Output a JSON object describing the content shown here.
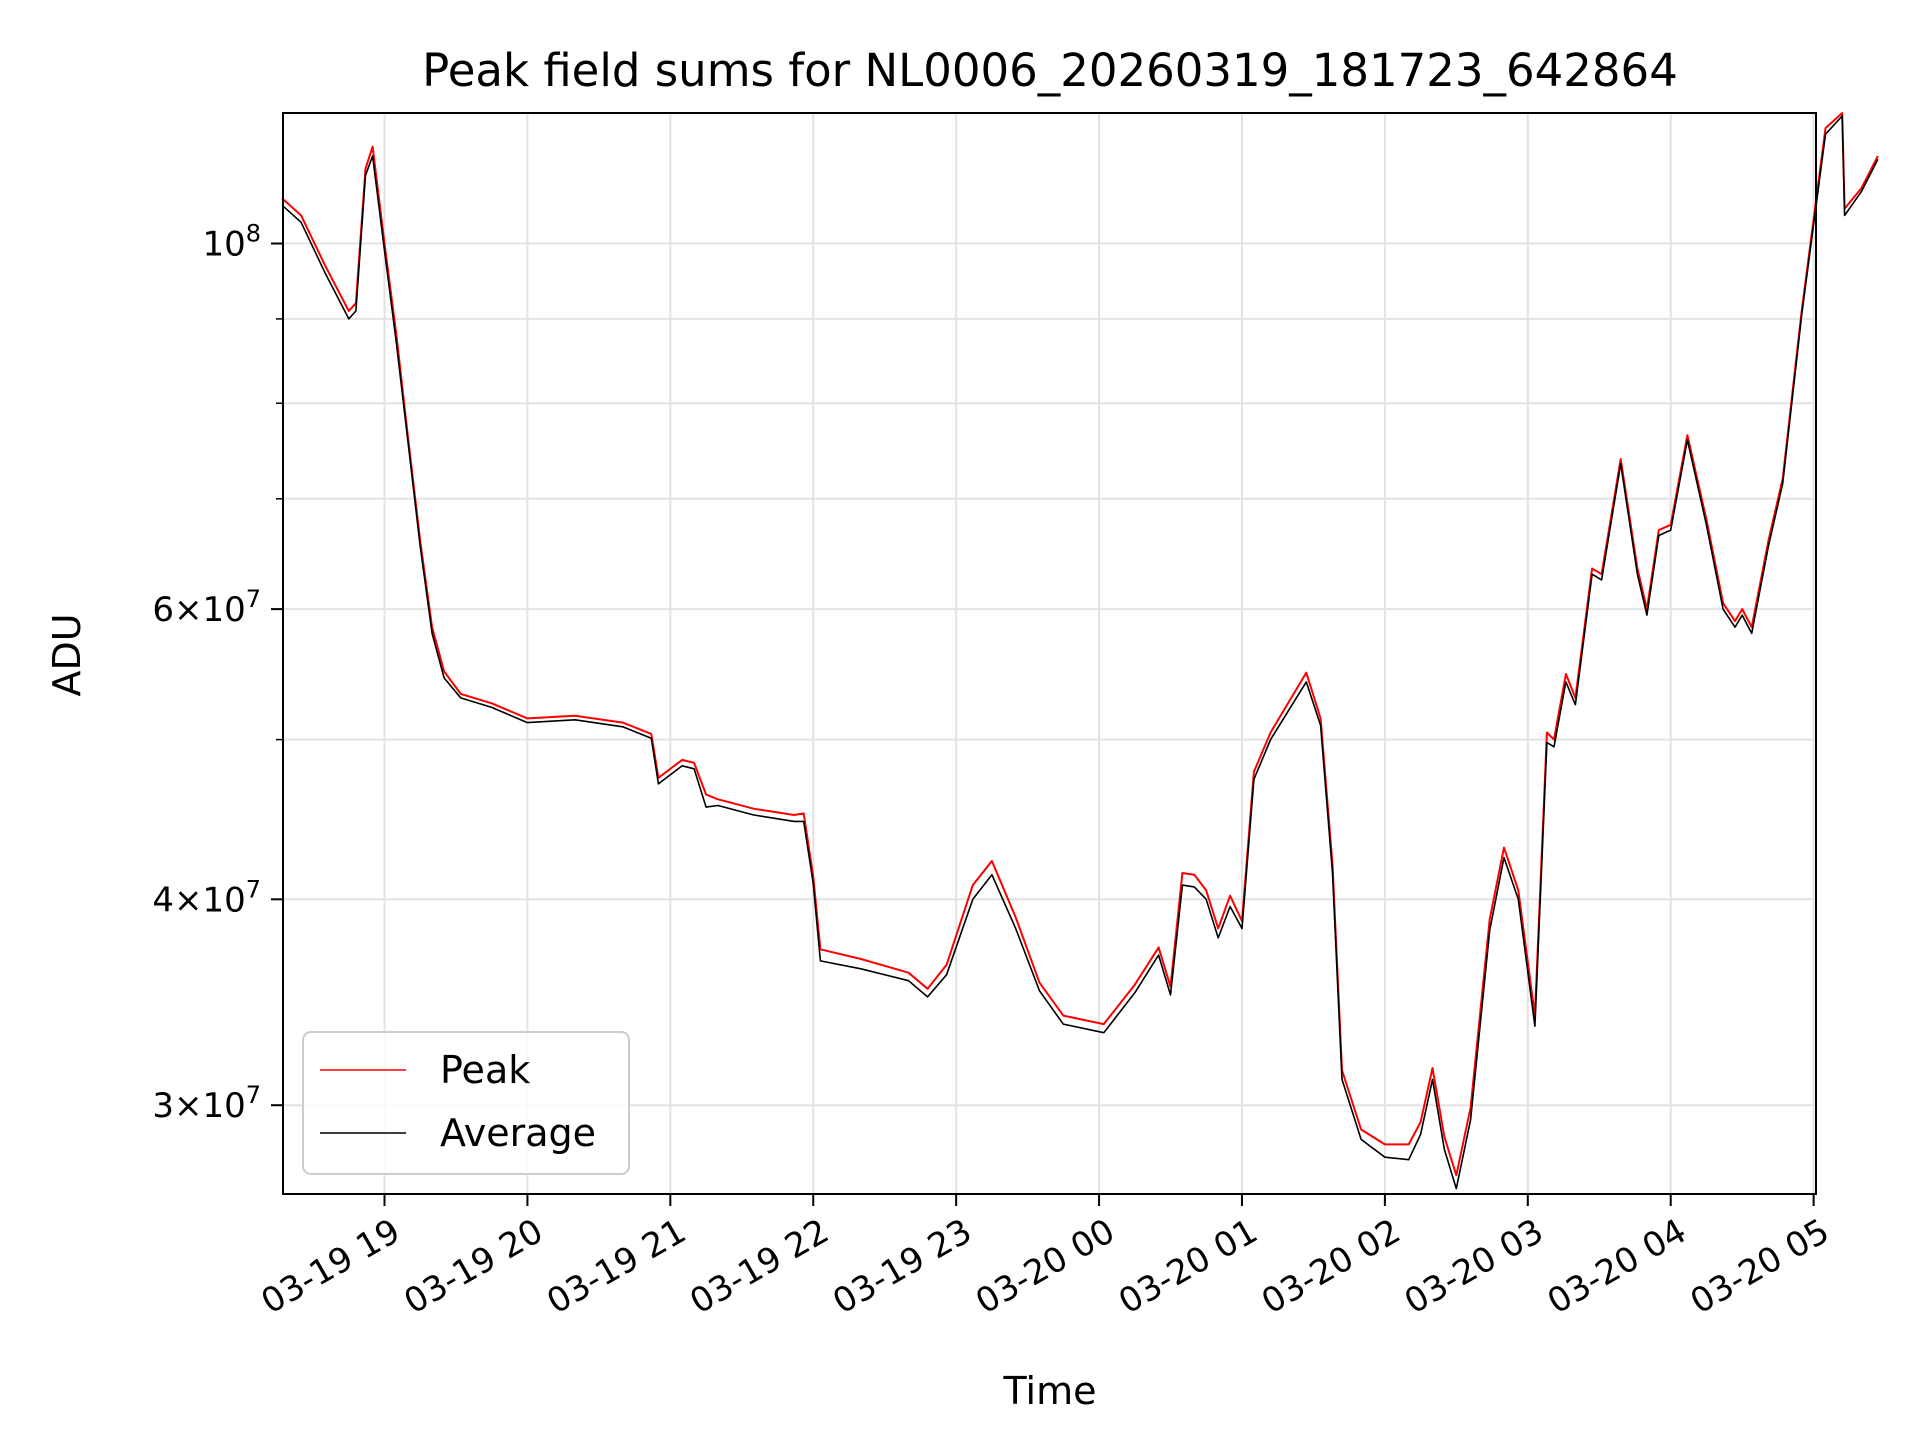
{
  "chart_data": {
    "type": "line",
    "title": "Peak field sums for NL0006_20260319_181723_642864",
    "xlabel": "Time",
    "ylabel": "ADU",
    "yscale": "log",
    "ylim": [
      26500000,
      120000000
    ],
    "xlim": [
      "2026-03-19 18:17:23",
      "2026-03-20 05:01:00"
    ],
    "grid": true,
    "legend_position": "lower-left",
    "x_ticks": [
      {
        "t": "2026-03-19 19:00",
        "label": "03-19 19"
      },
      {
        "t": "2026-03-19 20:00",
        "label": "03-19 20"
      },
      {
        "t": "2026-03-19 21:00",
        "label": "03-19 21"
      },
      {
        "t": "2026-03-19 22:00",
        "label": "03-19 22"
      },
      {
        "t": "2026-03-19 23:00",
        "label": "03-19 23"
      },
      {
        "t": "2026-03-20 00:00",
        "label": "03-20 00"
      },
      {
        "t": "2026-03-20 01:00",
        "label": "03-20 01"
      },
      {
        "t": "2026-03-20 02:00",
        "label": "03-20 02"
      },
      {
        "t": "2026-03-20 03:00",
        "label": "03-20 03"
      },
      {
        "t": "2026-03-20 04:00",
        "label": "03-20 04"
      },
      {
        "t": "2026-03-20 05:00",
        "label": "03-20 05"
      }
    ],
    "y_major_ticks": [
      {
        "v": 30000000,
        "mant": "3",
        "exp": "7"
      },
      {
        "v": 40000000,
        "mant": "4",
        "exp": "7"
      },
      {
        "v": 60000000,
        "mant": "6",
        "exp": "7"
      },
      {
        "v": 100000000,
        "mant": "",
        "exp": "8"
      }
    ],
    "y_minor_ticks": [
      50000000,
      70000000,
      80000000,
      90000000
    ],
    "series": [
      {
        "name": "Peak",
        "color": "#ff0000",
        "points": [
          [
            "2026-03-19 18:17",
            106500000
          ],
          [
            "2026-03-19 18:25",
            104000000
          ],
          [
            "2026-03-19 18:35",
            97000000
          ],
          [
            "2026-03-19 18:45",
            91000000
          ],
          [
            "2026-03-19 18:48",
            92000000
          ],
          [
            "2026-03-19 18:52",
            111000000
          ],
          [
            "2026-03-19 18:55",
            114500000
          ],
          [
            "2026-03-19 19:00",
            100000000
          ],
          [
            "2026-03-19 19:05",
            88000000
          ],
          [
            "2026-03-19 19:10",
            76000000
          ],
          [
            "2026-03-19 19:15",
            66000000
          ],
          [
            "2026-03-19 19:20",
            58500000
          ],
          [
            "2026-03-19 19:25",
            55000000
          ],
          [
            "2026-03-19 19:32",
            53300000
          ],
          [
            "2026-03-19 19:45",
            52600000
          ],
          [
            "2026-03-19 20:00",
            51500000
          ],
          [
            "2026-03-19 20:20",
            51700000
          ],
          [
            "2026-03-19 20:40",
            51200000
          ],
          [
            "2026-03-19 20:52",
            50400000
          ],
          [
            "2026-03-19 20:55",
            47400000
          ],
          [
            "2026-03-19 21:05",
            48600000
          ],
          [
            "2026-03-19 21:10",
            48400000
          ],
          [
            "2026-03-19 21:15",
            46300000
          ],
          [
            "2026-03-19 21:20",
            46000000
          ],
          [
            "2026-03-19 21:35",
            45400000
          ],
          [
            "2026-03-19 21:52",
            45000000
          ],
          [
            "2026-03-19 21:56",
            45100000
          ],
          [
            "2026-03-19 22:00",
            41300000
          ],
          [
            "2026-03-19 22:03",
            37300000
          ],
          [
            "2026-03-19 22:20",
            36800000
          ],
          [
            "2026-03-19 22:40",
            36100000
          ],
          [
            "2026-03-19 22:48",
            35300000
          ],
          [
            "2026-03-19 22:56",
            36500000
          ],
          [
            "2026-03-19 23:07",
            40800000
          ],
          [
            "2026-03-19 23:15",
            42200000
          ],
          [
            "2026-03-19 23:25",
            39000000
          ],
          [
            "2026-03-19 23:35",
            35600000
          ],
          [
            "2026-03-19 23:45",
            34000000
          ],
          [
            "2026-03-20 00:02",
            33600000
          ],
          [
            "2026-03-20 00:15",
            35500000
          ],
          [
            "2026-03-20 00:25",
            37400000
          ],
          [
            "2026-03-20 00:30",
            35400000
          ],
          [
            "2026-03-20 00:35",
            41500000
          ],
          [
            "2026-03-20 00:40",
            41400000
          ],
          [
            "2026-03-20 00:45",
            40500000
          ],
          [
            "2026-03-20 00:50",
            38400000
          ],
          [
            "2026-03-20 00:55",
            40200000
          ],
          [
            "2026-03-20 01:00",
            38800000
          ],
          [
            "2026-03-20 01:05",
            47800000
          ],
          [
            "2026-03-20 01:12",
            50500000
          ],
          [
            "2026-03-20 01:20",
            52800000
          ],
          [
            "2026-03-20 01:27",
            54900000
          ],
          [
            "2026-03-20 01:33",
            51500000
          ],
          [
            "2026-03-20 01:38",
            42000000
          ],
          [
            "2026-03-20 01:42",
            31500000
          ],
          [
            "2026-03-20 01:50",
            29000000
          ],
          [
            "2026-03-20 02:00",
            28400000
          ],
          [
            "2026-03-20 02:10",
            28400000
          ],
          [
            "2026-03-20 02:15",
            29300000
          ],
          [
            "2026-03-20 02:20",
            31600000
          ],
          [
            "2026-03-20 02:25",
            28700000
          ],
          [
            "2026-03-20 02:30",
            27200000
          ],
          [
            "2026-03-20 02:36",
            29900000
          ],
          [
            "2026-03-20 02:44",
            38900000
          ],
          [
            "2026-03-20 02:50",
            43000000
          ],
          [
            "2026-03-20 02:56",
            40500000
          ],
          [
            "2026-03-20 03:03",
            34000000
          ],
          [
            "2026-03-20 03:08",
            50500000
          ],
          [
            "2026-03-20 03:11",
            50000000
          ],
          [
            "2026-03-20 03:16",
            54800000
          ],
          [
            "2026-03-20 03:20",
            53000000
          ],
          [
            "2026-03-20 03:27",
            63500000
          ],
          [
            "2026-03-20 03:31",
            63000000
          ],
          [
            "2026-03-20 03:39",
            74000000
          ],
          [
            "2026-03-20 03:46",
            63500000
          ],
          [
            "2026-03-20 03:50",
            60000000
          ],
          [
            "2026-03-20 03:55",
            67000000
          ],
          [
            "2026-03-20 04:00",
            67500000
          ],
          [
            "2026-03-20 04:07",
            76500000
          ],
          [
            "2026-03-20 04:15",
            68000000
          ],
          [
            "2026-03-20 04:22",
            60500000
          ],
          [
            "2026-03-20 04:27",
            59000000
          ],
          [
            "2026-03-20 04:30",
            60000000
          ],
          [
            "2026-03-20 04:34",
            58500000
          ],
          [
            "2026-03-20 04:41",
            66000000
          ],
          [
            "2026-03-20 04:47",
            72000000
          ],
          [
            "2026-03-20 04:55",
            91000000
          ],
          [
            "2026-03-20 05:05",
            117500000
          ],
          [
            "2026-03-20 05:12",
            120000000
          ],
          [
            "2026-03-20 05:13",
            105000000
          ],
          [
            "2026-03-20 05:20",
            108000000
          ],
          [
            "2026-03-20 05:27",
            113000000
          ]
        ]
      },
      {
        "name": "Average",
        "color": "#000000",
        "points": [
          [
            "2026-03-19 18:17",
            105500000
          ],
          [
            "2026-03-19 18:25",
            103000000
          ],
          [
            "2026-03-19 18:35",
            96000000
          ],
          [
            "2026-03-19 18:45",
            90000000
          ],
          [
            "2026-03-19 18:48",
            91000000
          ],
          [
            "2026-03-19 18:52",
            110000000
          ],
          [
            "2026-03-19 18:55",
            113000000
          ],
          [
            "2026-03-19 19:00",
            99000000
          ],
          [
            "2026-03-19 19:05",
            87000000
          ],
          [
            "2026-03-19 19:10",
            75500000
          ],
          [
            "2026-03-19 19:15",
            65500000
          ],
          [
            "2026-03-19 19:20",
            58000000
          ],
          [
            "2026-03-19 19:25",
            54500000
          ],
          [
            "2026-03-19 19:32",
            53000000
          ],
          [
            "2026-03-19 19:45",
            52300000
          ],
          [
            "2026-03-19 20:00",
            51200000
          ],
          [
            "2026-03-19 20:20",
            51400000
          ],
          [
            "2026-03-19 20:40",
            50900000
          ],
          [
            "2026-03-19 20:52",
            50100000
          ],
          [
            "2026-03-19 20:55",
            47000000
          ],
          [
            "2026-03-19 21:05",
            48200000
          ],
          [
            "2026-03-19 21:10",
            48000000
          ],
          [
            "2026-03-19 21:15",
            45500000
          ],
          [
            "2026-03-19 21:20",
            45600000
          ],
          [
            "2026-03-19 21:35",
            45000000
          ],
          [
            "2026-03-19 21:52",
            44600000
          ],
          [
            "2026-03-19 21:56",
            44600000
          ],
          [
            "2026-03-19 22:00",
            40900000
          ],
          [
            "2026-03-19 22:03",
            36700000
          ],
          [
            "2026-03-19 22:20",
            36300000
          ],
          [
            "2026-03-19 22:40",
            35700000
          ],
          [
            "2026-03-19 22:48",
            34900000
          ],
          [
            "2026-03-19 22:56",
            36000000
          ],
          [
            "2026-03-19 23:07",
            40000000
          ],
          [
            "2026-03-19 23:15",
            41400000
          ],
          [
            "2026-03-19 23:25",
            38400000
          ],
          [
            "2026-03-19 23:35",
            35200000
          ],
          [
            "2026-03-19 23:45",
            33600000
          ],
          [
            "2026-03-20 00:02",
            33200000
          ],
          [
            "2026-03-20 00:15",
            35100000
          ],
          [
            "2026-03-20 00:25",
            37000000
          ],
          [
            "2026-03-20 00:30",
            35000000
          ],
          [
            "2026-03-20 00:35",
            40800000
          ],
          [
            "2026-03-20 00:40",
            40700000
          ],
          [
            "2026-03-20 00:45",
            40000000
          ],
          [
            "2026-03-20 00:50",
            37900000
          ],
          [
            "2026-03-20 00:55",
            39600000
          ],
          [
            "2026-03-20 01:00",
            38400000
          ],
          [
            "2026-03-20 01:05",
            47300000
          ],
          [
            "2026-03-20 01:12",
            50000000
          ],
          [
            "2026-03-20 01:20",
            52200000
          ],
          [
            "2026-03-20 01:27",
            54200000
          ],
          [
            "2026-03-20 01:33",
            51000000
          ],
          [
            "2026-03-20 01:38",
            41500000
          ],
          [
            "2026-03-20 01:42",
            31100000
          ],
          [
            "2026-03-20 01:50",
            28600000
          ],
          [
            "2026-03-20 02:00",
            27900000
          ],
          [
            "2026-03-20 02:10",
            27800000
          ],
          [
            "2026-03-20 02:15",
            28800000
          ],
          [
            "2026-03-20 02:20",
            31100000
          ],
          [
            "2026-03-20 02:25",
            28200000
          ],
          [
            "2026-03-20 02:30",
            26700000
          ],
          [
            "2026-03-20 02:36",
            29400000
          ],
          [
            "2026-03-20 02:44",
            38300000
          ],
          [
            "2026-03-20 02:50",
            42400000
          ],
          [
            "2026-03-20 02:56",
            40000000
          ],
          [
            "2026-03-20 03:03",
            33500000
          ],
          [
            "2026-03-20 03:08",
            49800000
          ],
          [
            "2026-03-20 03:11",
            49500000
          ],
          [
            "2026-03-20 03:16",
            54200000
          ],
          [
            "2026-03-20 03:20",
            52500000
          ],
          [
            "2026-03-20 03:27",
            63000000
          ],
          [
            "2026-03-20 03:31",
            62500000
          ],
          [
            "2026-03-20 03:39",
            73500000
          ],
          [
            "2026-03-20 03:46",
            63000000
          ],
          [
            "2026-03-20 03:50",
            59500000
          ],
          [
            "2026-03-20 03:55",
            66500000
          ],
          [
            "2026-03-20 04:00",
            67000000
          ],
          [
            "2026-03-20 04:07",
            76000000
          ],
          [
            "2026-03-20 04:15",
            67500000
          ],
          [
            "2026-03-20 04:22",
            60000000
          ],
          [
            "2026-03-20 04:27",
            58500000
          ],
          [
            "2026-03-20 04:30",
            59500000
          ],
          [
            "2026-03-20 04:34",
            58000000
          ],
          [
            "2026-03-20 04:41",
            65500000
          ],
          [
            "2026-03-20 04:47",
            71500000
          ],
          [
            "2026-03-20 04:55",
            90500000
          ],
          [
            "2026-03-20 05:05",
            116500000
          ],
          [
            "2026-03-20 05:12",
            119500000
          ],
          [
            "2026-03-20 05:13",
            104000000
          ],
          [
            "2026-03-20 05:20",
            107500000
          ],
          [
            "2026-03-20 05:27",
            112500000
          ]
        ]
      }
    ]
  }
}
